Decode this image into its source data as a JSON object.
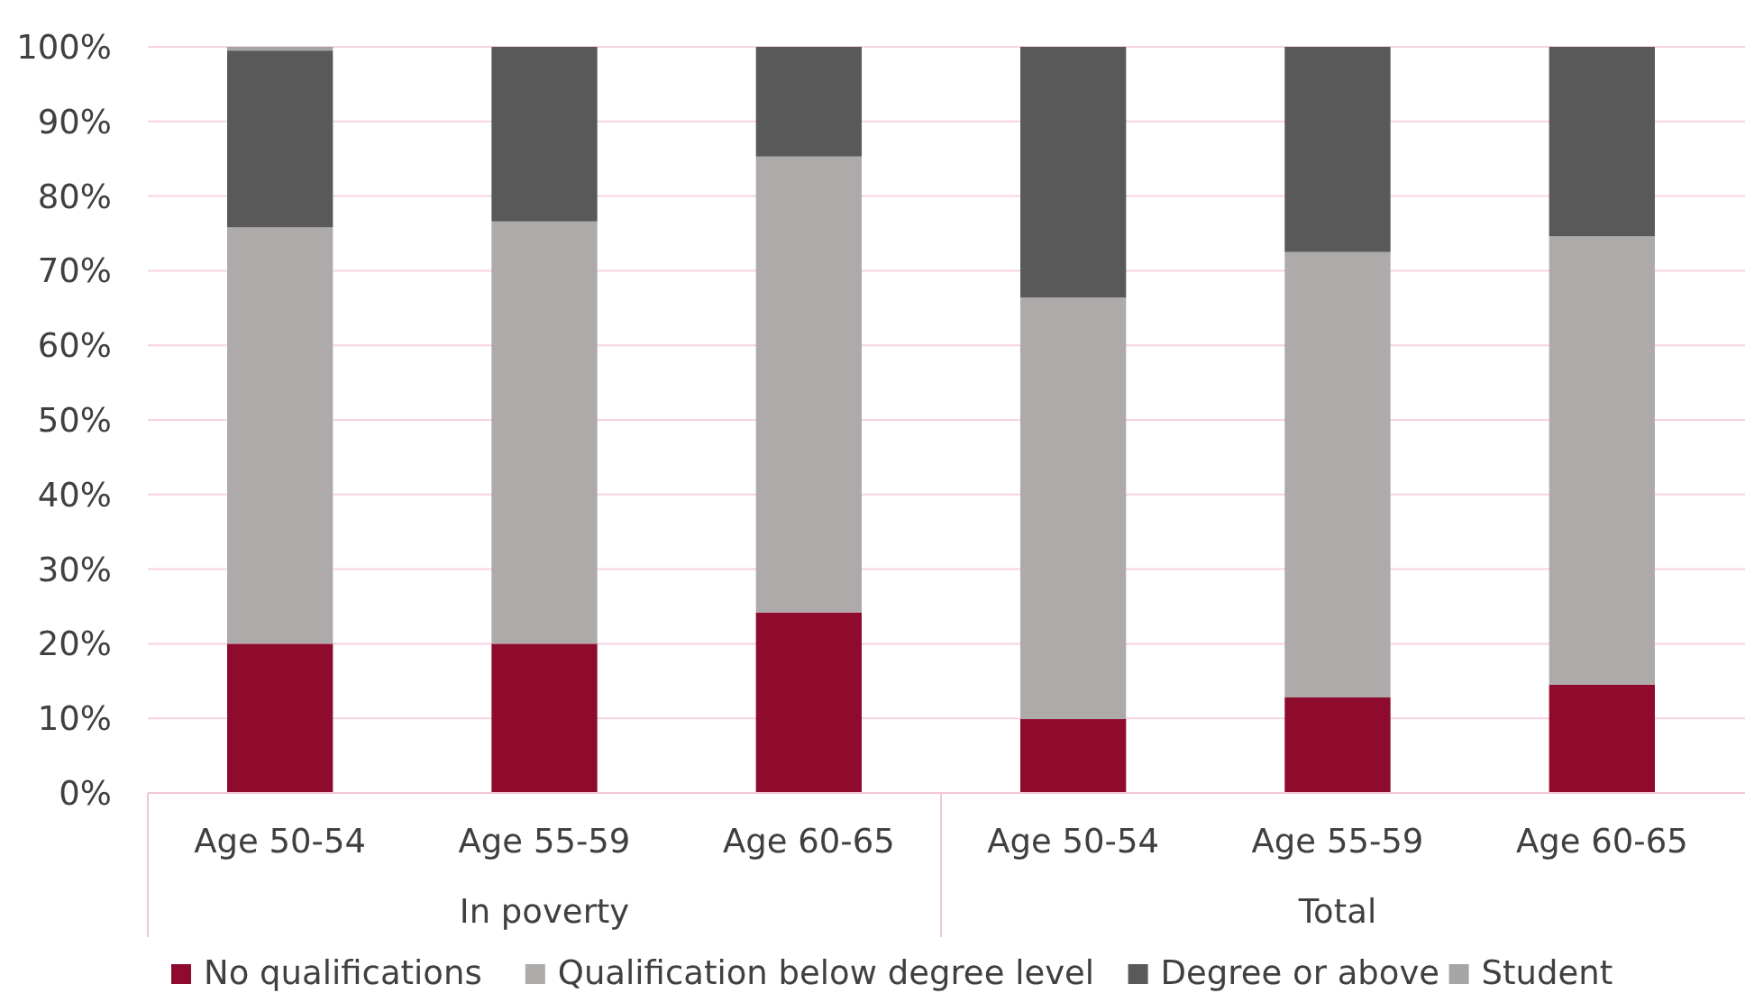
{
  "chart_data": {
    "type": "bar",
    "stacked": true,
    "categories": [
      "Age 50-54",
      "Age 55-59",
      "Age 60-65",
      "Age 50-54",
      "Age 55-59",
      "Age 60-65"
    ],
    "series": [
      {
        "name": "No qualifications",
        "color": "#8e0b2e",
        "values": [
          20.0,
          20.0,
          24.2,
          9.9,
          12.8,
          14.5
        ]
      },
      {
        "name": "Qualification below degree level",
        "color": "#aeaaaa",
        "values": [
          55.8,
          56.6,
          61.1,
          56.5,
          59.7,
          60.1
        ]
      },
      {
        "name": "Degree or above",
        "color": "#595959",
        "values": [
          23.7,
          23.4,
          14.7,
          33.6,
          27.5,
          25.4
        ]
      },
      {
        "name": "Student",
        "color": "#a5a5a5",
        "values": [
          0.5,
          null,
          null,
          null,
          null,
          null
        ]
      }
    ],
    "ylim": [
      0,
      100
    ],
    "yticks": [
      {
        "value": 0,
        "label": "0%"
      },
      {
        "value": 10,
        "label": "10%"
      },
      {
        "value": 20,
        "label": "20%"
      },
      {
        "value": 30,
        "label": "30%"
      },
      {
        "value": 40,
        "label": "40%"
      },
      {
        "value": 50,
        "label": "50%"
      },
      {
        "value": 60,
        "label": "60%"
      },
      {
        "value": 70,
        "label": "70%"
      },
      {
        "value": 80,
        "label": "80%"
      },
      {
        "value": 90,
        "label": "90%"
      },
      {
        "value": 100,
        "label": "100%"
      }
    ],
    "grid": "y",
    "legend": "bottom",
    "annotations": [
      "In poverty",
      "Total"
    ]
  }
}
